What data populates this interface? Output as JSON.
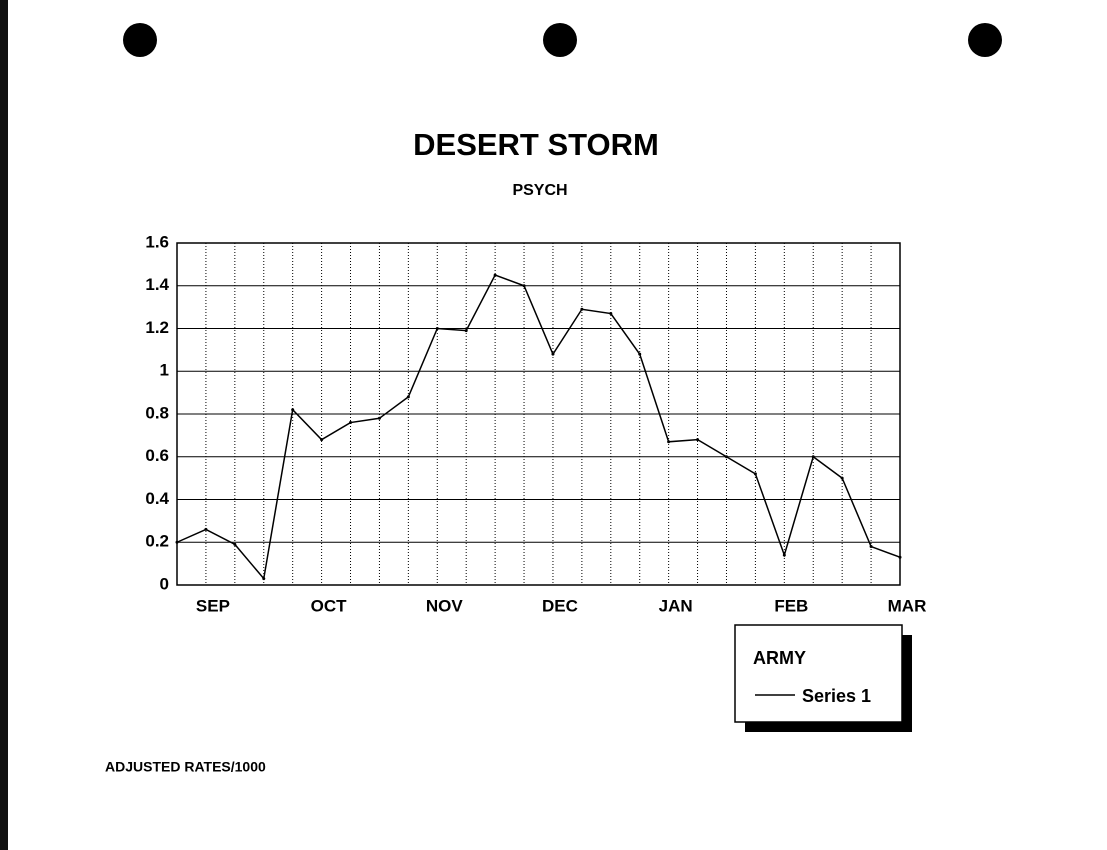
{
  "chart_data": {
    "type": "line",
    "title": "DESERT STORM",
    "subtitle": "PSYCH",
    "categories": [
      null,
      "SEP",
      null,
      null,
      null,
      "OCT",
      null,
      null,
      null,
      "NOV",
      null,
      null,
      null,
      "DEC",
      null,
      null,
      null,
      "JAN",
      null,
      null,
      null,
      "FEB",
      null,
      null,
      null,
      "MAR"
    ],
    "series": [
      {
        "name": "Series 1",
        "color": "#000000",
        "values": [
          0.2,
          0.26,
          0.19,
          0.03,
          0.82,
          0.68,
          0.76,
          0.78,
          0.88,
          1.2,
          1.19,
          1.45,
          1.4,
          1.08,
          1.29,
          1.27,
          1.08,
          0.67,
          0.68,
          0.6,
          0.52,
          0.14,
          0.6,
          0.5,
          0.18,
          0.13
        ]
      }
    ],
    "legend_title": "ARMY",
    "legend_position": "lower right",
    "footnote": "ADJUSTED RATES/1000",
    "ylim": [
      0,
      1.6
    ],
    "yticks": [
      0,
      0.2,
      0.4,
      0.6,
      0.8,
      1,
      1.2,
      1.4,
      1.6
    ],
    "grid": true
  }
}
